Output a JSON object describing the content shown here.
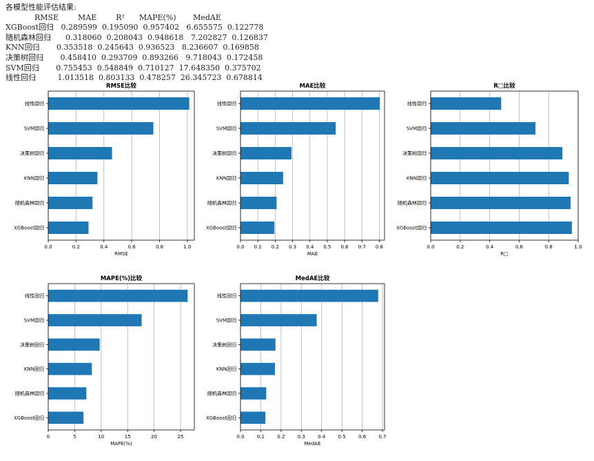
{
  "results_table": {
    "heading": "各模型性能评估结果:",
    "header_line": "            RMSE        MAE        R²      MAPE(%)       MedAE",
    "rows": [
      "XGBoost回归   0.289599  0.195090  0.957402   6.655575  0.122778",
      "随机森林回归      0.318060  0.208043  0.948618   7.202827  0.126837",
      "KNN回归       0.353518  0.245643  0.936523   8.236607  0.169858",
      "决策树回归       0.458410  0.293709  0.893266   9.718043  0.172458",
      "SVM回归       0.755453  0.548849  0.710127  17.648350  0.375702",
      "线性回归         1.013518  0.803133  0.478257  26.345723  0.678814"
    ]
  },
  "chart_data": [
    {
      "type": "bar",
      "orientation": "horizontal",
      "title": "RMSE比较",
      "xlabel": "RMSE",
      "ylabel": "",
      "categories": [
        "线性回归",
        "SVM回归",
        "决策树回归",
        "KNN回归",
        "随机森林回归",
        "XGBoost回归"
      ],
      "values": [
        1.013518,
        0.755453,
        0.45841,
        0.353518,
        0.31806,
        0.289599
      ],
      "xlim": [
        0,
        1.05
      ],
      "xticks": [
        0,
        0.2,
        0.4,
        0.6,
        0.8,
        1.0
      ],
      "xtick_labels": [
        "0.0",
        "0.2",
        "0.4",
        "0.6",
        "0.8",
        "1.0"
      ],
      "grid": "vertical",
      "color": "#1f77b4"
    },
    {
      "type": "bar",
      "orientation": "horizontal",
      "title": "MAE比较",
      "xlabel": "MAE",
      "ylabel": "",
      "categories": [
        "线性回归",
        "SVM回归",
        "决策树回归",
        "KNN回归",
        "随机森林回归",
        "XGBoost回归"
      ],
      "values": [
        0.803133,
        0.548849,
        0.293709,
        0.245643,
        0.208043,
        0.19509
      ],
      "xlim": [
        0,
        0.83
      ],
      "xticks": [
        0,
        0.1,
        0.2,
        0.3,
        0.4,
        0.5,
        0.6,
        0.7,
        0.8
      ],
      "xtick_labels": [
        "0.0",
        "0.1",
        "0.2",
        "0.3",
        "0.4",
        "0.5",
        "0.6",
        "0.7",
        "0.8"
      ],
      "grid": "vertical",
      "color": "#1f77b4"
    },
    {
      "type": "bar",
      "orientation": "horizontal",
      "title": "R□比较",
      "xlabel": "R□",
      "ylabel": "",
      "categories": [
        "线性回归",
        "SVM回归",
        "决策树回归",
        "KNN回归",
        "随机森林回归",
        "XGBoost回归"
      ],
      "values": [
        0.478257,
        0.710127,
        0.893266,
        0.936523,
        0.948618,
        0.957402
      ],
      "xlim": [
        0,
        1.0
      ],
      "xticks": [
        0,
        0.2,
        0.4,
        0.6,
        0.8,
        1.0
      ],
      "xtick_labels": [
        "0.0",
        "0.2",
        "0.4",
        "0.6",
        "0.8",
        "1.0"
      ],
      "grid": "vertical",
      "color": "#1f77b4"
    },
    {
      "type": "bar",
      "orientation": "horizontal",
      "title": "MAPE(%)比较",
      "xlabel": "MAPE(%)",
      "ylabel": "",
      "categories": [
        "线性回归",
        "SVM回归",
        "决策树回归",
        "KNN回归",
        "随机森林回归",
        "XGBoost回归"
      ],
      "values": [
        26.345723,
        17.64835,
        9.718043,
        8.236607,
        7.202827,
        6.655575
      ],
      "xlim": [
        0,
        27.6
      ],
      "xticks": [
        0,
        5,
        10,
        15,
        20,
        25
      ],
      "xtick_labels": [
        "0",
        "5",
        "10",
        "15",
        "20",
        "25"
      ],
      "grid": "vertical",
      "color": "#1f77b4"
    },
    {
      "type": "bar",
      "orientation": "horizontal",
      "title": "MedAE比较",
      "xlabel": "MedAE",
      "ylabel": "",
      "categories": [
        "线性回归",
        "SVM回归",
        "决策树回归",
        "KNN回归",
        "随机森林回归",
        "XGBoost回归"
      ],
      "values": [
        0.678814,
        0.375702,
        0.172458,
        0.169858,
        0.126837,
        0.122778
      ],
      "xlim": [
        0,
        0.71
      ],
      "xticks": [
        0,
        0.1,
        0.2,
        0.3,
        0.4,
        0.5,
        0.6,
        0.7
      ],
      "xtick_labels": [
        "0.0",
        "0.1",
        "0.2",
        "0.3",
        "0.4",
        "0.5",
        "0.6",
        "0.7"
      ],
      "grid": "vertical",
      "color": "#1f77b4"
    }
  ]
}
